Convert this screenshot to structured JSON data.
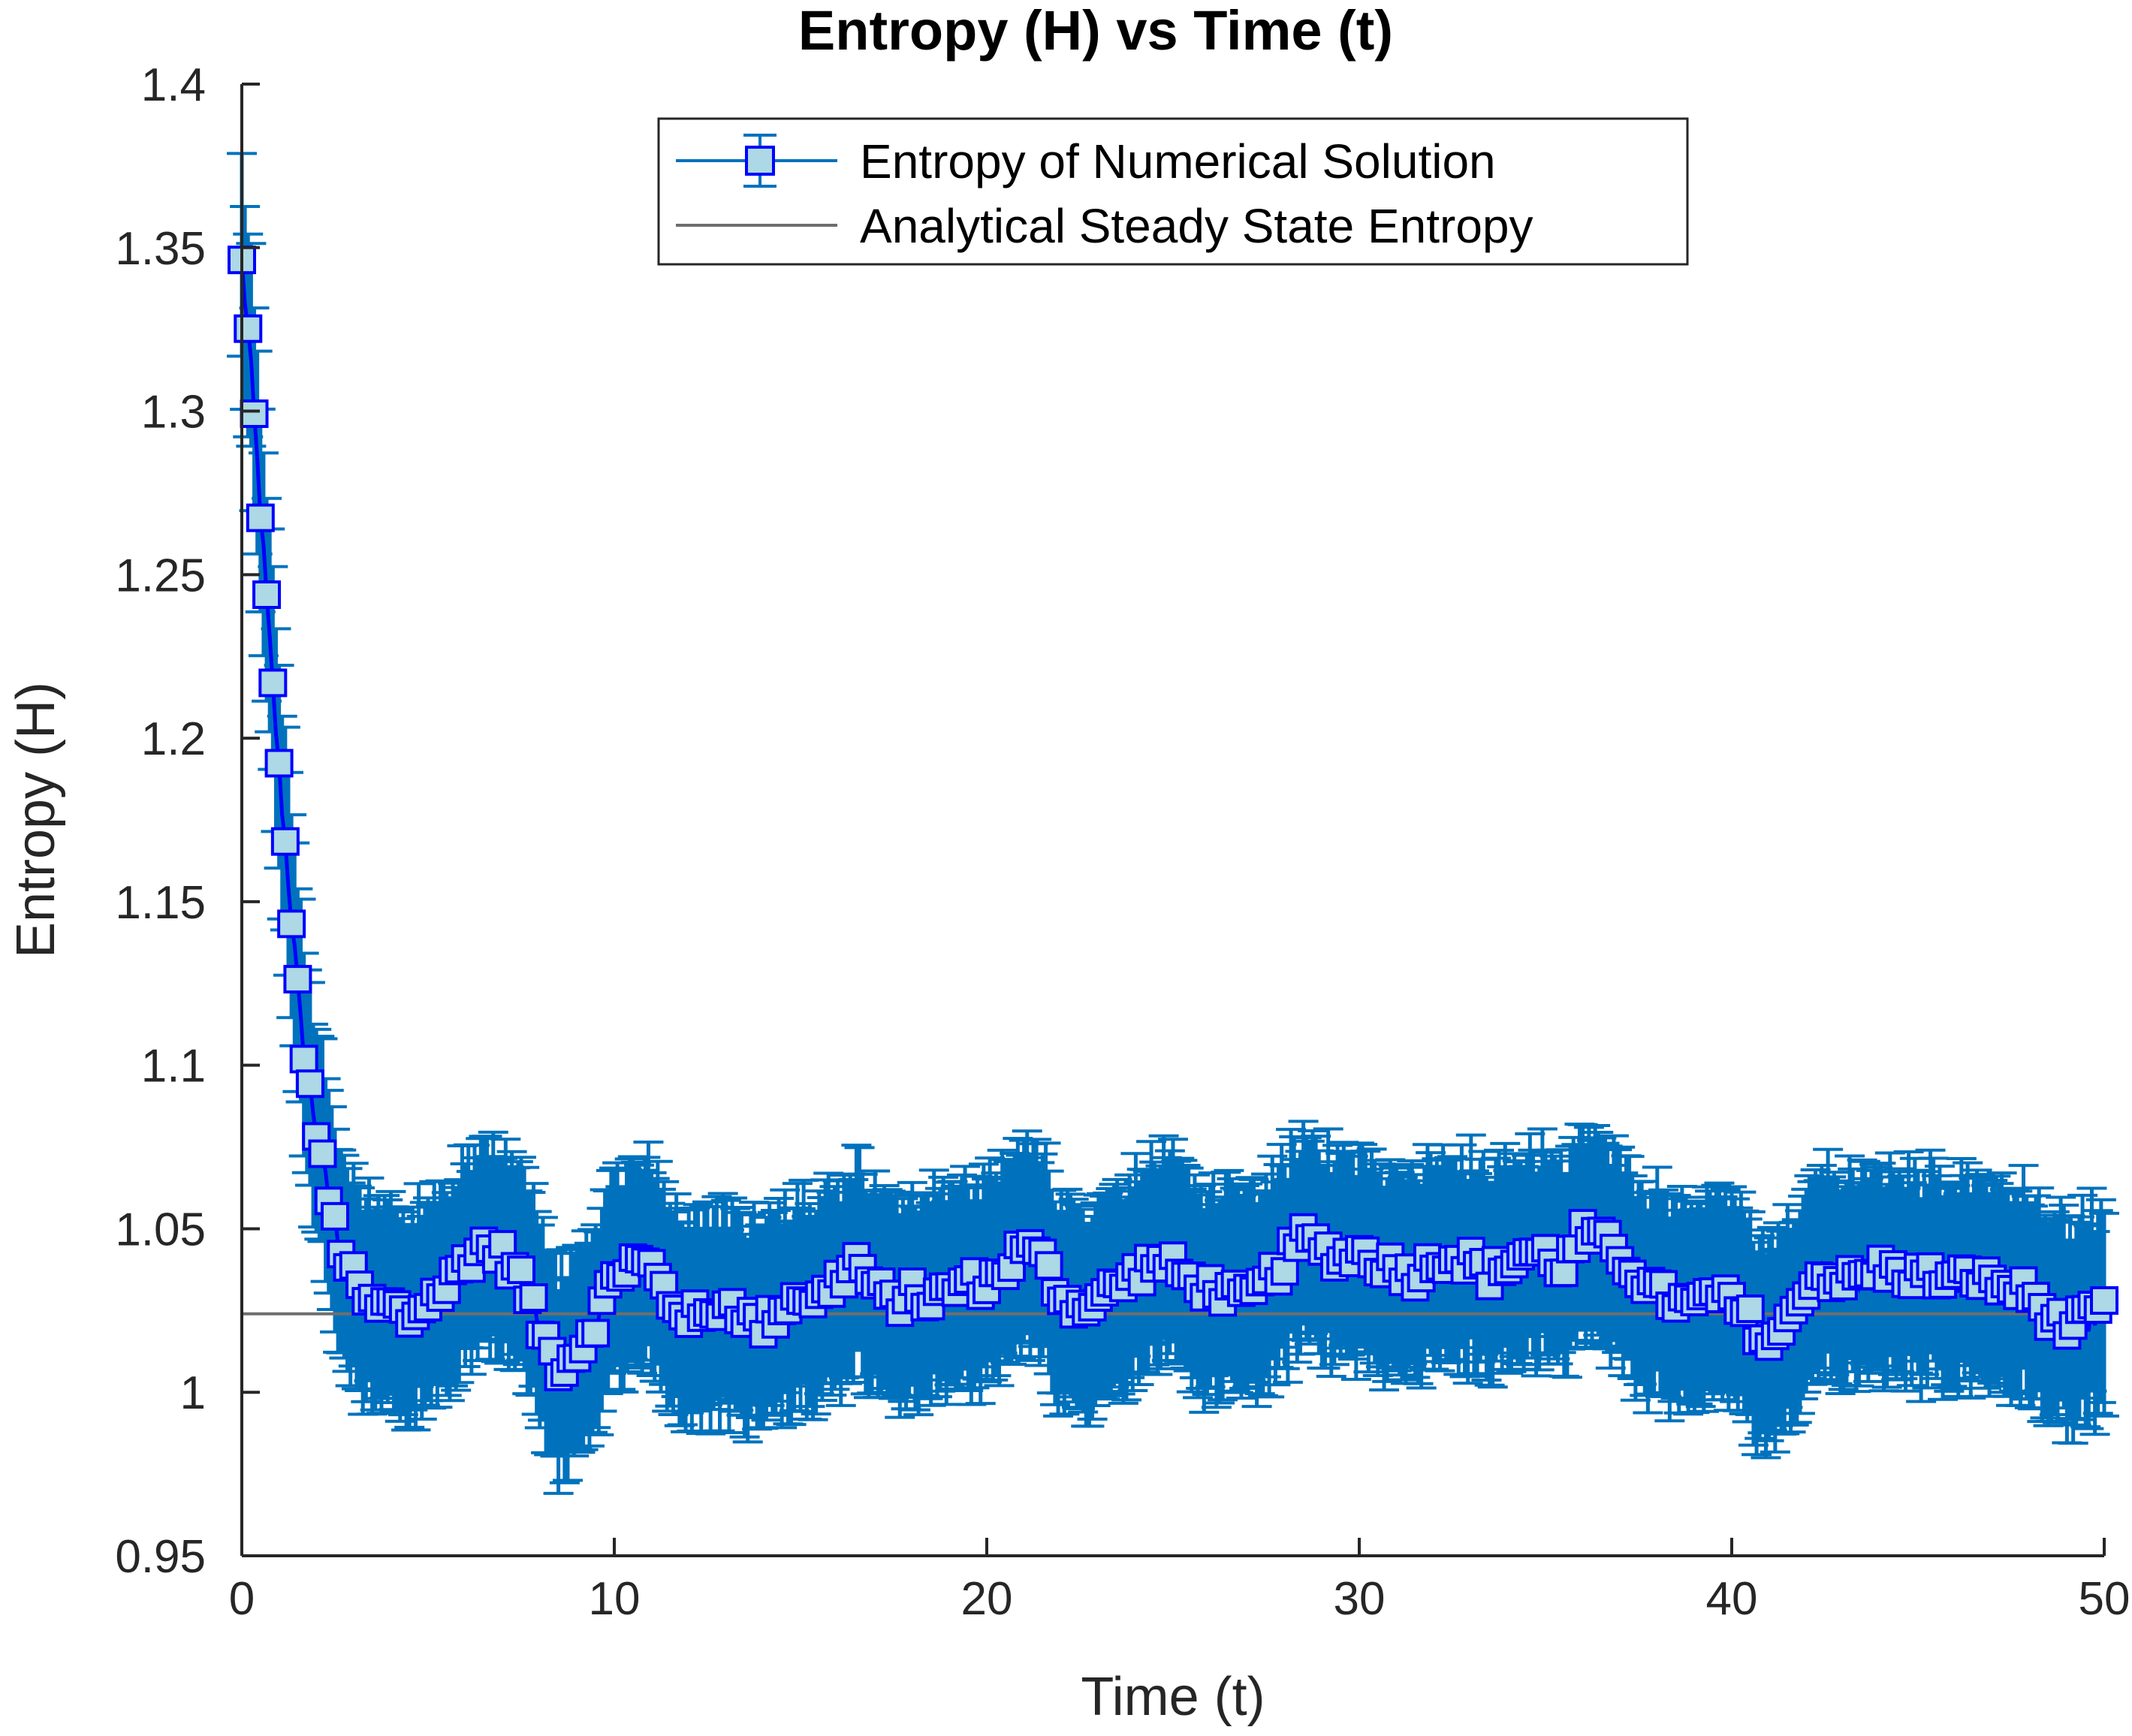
{
  "chart_data": {
    "type": "line",
    "title": "Entropy (H) vs Time (t)",
    "xlabel": "Time (t)",
    "ylabel": "Entropy (H)",
    "xlim": [
      0,
      50
    ],
    "ylim": [
      0.95,
      1.4
    ],
    "xticks": [
      0,
      10,
      20,
      30,
      40,
      50
    ],
    "xtick_labels": [
      "0",
      "10",
      "20",
      "30",
      "40",
      "50"
    ],
    "yticks": [
      0.95,
      1.0,
      1.05,
      1.1,
      1.15,
      1.2,
      1.25,
      1.3,
      1.35,
      1.4
    ],
    "ytick_labels": [
      "0.95",
      "1",
      "1.05",
      "1.1",
      "1.15",
      "1.2",
      "1.25",
      "1.3",
      "1.35",
      "1.4"
    ],
    "grid": false,
    "legend_position": "top-center",
    "series": [
      {
        "name": "Entropy of Numerical Solution",
        "style": "errorbar-with-square-markers",
        "line_color": "#0000ff",
        "marker_face_color": "#add8e6",
        "errorbar_color": "#0072bd",
        "error_halfwidth": 0.031,
        "x": [
          0,
          0.2,
          0.5,
          0.8,
          1.0,
          1.3,
          1.6,
          2.0,
          2.4,
          2.8,
          3.2,
          3.6,
          4.0,
          4.5,
          5.0,
          5.5,
          6.0,
          6.5,
          7.0,
          7.5,
          8.0,
          8.5,
          9.0,
          9.5,
          10.0,
          10.5,
          11.0,
          11.5,
          12.0,
          12.5,
          13.0,
          13.5,
          14.0,
          14.5,
          15.0,
          15.5,
          16.0,
          16.5,
          17.0,
          17.5,
          18.0,
          18.5,
          19.0,
          19.5,
          20.0,
          20.5,
          21.0,
          21.5,
          22.0,
          22.5,
          23.0,
          23.5,
          24.0,
          24.5,
          25.0,
          25.5,
          26.0,
          26.5,
          27.0,
          27.5,
          28.0,
          28.5,
          29.0,
          29.5,
          30.0,
          30.5,
          31.0,
          31.5,
          32.0,
          32.5,
          33.0,
          33.5,
          34.0,
          34.5,
          35.0,
          35.5,
          36.0,
          36.5,
          37.0,
          37.5,
          38.0,
          38.5,
          39.0,
          39.5,
          40.0,
          40.5,
          41.0,
          41.5,
          42.0,
          42.5,
          43.0,
          43.5,
          44.0,
          44.5,
          45.0,
          45.5,
          46.0,
          46.5,
          47.0,
          47.5,
          48.0,
          48.5,
          49.0,
          49.5,
          50.0
        ],
        "y": [
          1.345,
          1.32,
          1.27,
          1.22,
          1.19,
          1.15,
          1.11,
          1.08,
          1.055,
          1.04,
          1.03,
          1.025,
          1.027,
          1.022,
          1.028,
          1.032,
          1.04,
          1.045,
          1.042,
          1.035,
          1.02,
          1.008,
          1.012,
          1.022,
          1.035,
          1.04,
          1.038,
          1.028,
          1.024,
          1.022,
          1.028,
          1.024,
          1.02,
          1.026,
          1.03,
          1.028,
          1.034,
          1.04,
          1.032,
          1.027,
          1.03,
          1.028,
          1.031,
          1.034,
          1.033,
          1.038,
          1.045,
          1.04,
          1.03,
          1.026,
          1.029,
          1.032,
          1.036,
          1.04,
          1.038,
          1.034,
          1.032,
          1.03,
          1.028,
          1.033,
          1.04,
          1.047,
          1.044,
          1.041,
          1.043,
          1.04,
          1.038,
          1.036,
          1.04,
          1.042,
          1.04,
          1.036,
          1.039,
          1.043,
          1.042,
          1.038,
          1.048,
          1.046,
          1.042,
          1.036,
          1.03,
          1.028,
          1.026,
          1.03,
          1.027,
          1.022,
          1.015,
          1.02,
          1.033,
          1.036,
          1.034,
          1.035,
          1.038,
          1.036,
          1.036,
          1.035,
          1.034,
          1.036,
          1.033,
          1.032,
          1.03,
          1.024,
          1.02,
          1.022,
          1.025
        ]
      },
      {
        "name": "Analytical Steady State Entropy",
        "style": "line",
        "line_color": "#6e6e6e",
        "x": [
          0,
          50
        ],
        "y": [
          1.024,
          1.024
        ]
      }
    ]
  }
}
